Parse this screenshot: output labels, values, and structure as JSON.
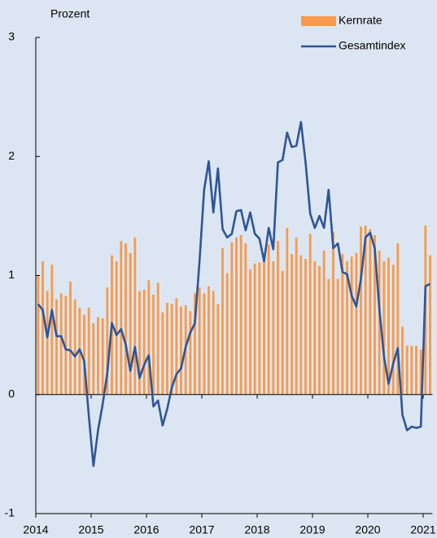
{
  "chart_data": {
    "type": "bar_line",
    "y_label": "Prozent",
    "categories": [
      "2014",
      null,
      null,
      null,
      null,
      null,
      null,
      null,
      null,
      null,
      null,
      null,
      "2015",
      null,
      null,
      null,
      null,
      null,
      null,
      null,
      null,
      null,
      null,
      null,
      "2016",
      null,
      null,
      null,
      null,
      null,
      null,
      null,
      null,
      null,
      null,
      null,
      "2017",
      null,
      null,
      null,
      null,
      null,
      null,
      null,
      null,
      null,
      null,
      null,
      "2018",
      null,
      null,
      null,
      null,
      null,
      null,
      null,
      null,
      null,
      null,
      null,
      "2019",
      null,
      null,
      null,
      null,
      null,
      null,
      null,
      null,
      null,
      null,
      null,
      "2020",
      null,
      null,
      null,
      null,
      null,
      null,
      null,
      null,
      null,
      null,
      null,
      "2021",
      null
    ],
    "series": [
      {
        "name": "Kernrate",
        "kind": "bar",
        "color": "#f79a4b",
        "values": [
          1.0,
          1.12,
          0.87,
          1.09,
          0.8,
          0.85,
          0.83,
          0.95,
          0.8,
          0.73,
          0.67,
          0.73,
          0.6,
          0.65,
          0.64,
          0.9,
          1.17,
          1.12,
          1.29,
          1.27,
          1.19,
          1.32,
          0.87,
          0.88,
          0.96,
          0.84,
          0.94,
          0.69,
          0.77,
          0.76,
          0.81,
          0.74,
          0.75,
          0.7,
          0.85,
          0.9,
          0.85,
          0.91,
          0.87,
          0.76,
          1.23,
          1.02,
          1.28,
          1.32,
          1.34,
          1.27,
          1.05,
          1.1,
          1.11,
          1.19,
          1.26,
          1.12,
          1.29,
          1.04,
          1.4,
          1.18,
          1.32,
          1.17,
          1.14,
          1.35,
          1.12,
          1.08,
          1.21,
          0.97,
          1.37,
          0.97,
          1.18,
          1.12,
          1.16,
          1.19,
          1.41,
          1.42,
          1.39,
          1.34,
          1.21,
          1.12,
          1.15,
          1.09,
          1.27,
          0.57,
          0.41,
          0.41,
          0.41,
          0.38,
          1.42,
          1.17
        ]
      },
      {
        "name": "Gesamtindex",
        "kind": "line",
        "color": "#2f5597",
        "values": [
          0.76,
          0.71,
          0.48,
          0.71,
          0.49,
          0.49,
          0.38,
          0.37,
          0.32,
          0.38,
          0.28,
          -0.18,
          -0.6,
          -0.3,
          -0.08,
          0.18,
          0.6,
          0.5,
          0.55,
          0.42,
          0.2,
          0.4,
          0.14,
          0.25,
          0.33,
          -0.1,
          -0.05,
          -0.26,
          -0.12,
          0.06,
          0.17,
          0.22,
          0.4,
          0.52,
          0.6,
          1.12,
          1.72,
          1.96,
          1.53,
          1.9,
          1.39,
          1.32,
          1.35,
          1.54,
          1.55,
          1.38,
          1.53,
          1.35,
          1.31,
          1.12,
          1.4,
          1.22,
          1.95,
          1.97,
          2.2,
          2.08,
          2.09,
          2.29,
          1.95,
          1.52,
          1.4,
          1.5,
          1.4,
          1.72,
          1.23,
          1.27,
          1.03,
          1.01,
          0.83,
          0.74,
          0.97,
          1.32,
          1.36,
          1.23,
          0.72,
          0.32,
          0.09,
          0.26,
          0.39,
          -0.17,
          -0.3,
          -0.27,
          -0.28,
          -0.27,
          0.91,
          0.93
        ]
      }
    ],
    "ylim": [
      -1,
      3
    ],
    "yticks": [
      -1,
      0,
      1,
      2,
      3
    ],
    "grid": false
  }
}
